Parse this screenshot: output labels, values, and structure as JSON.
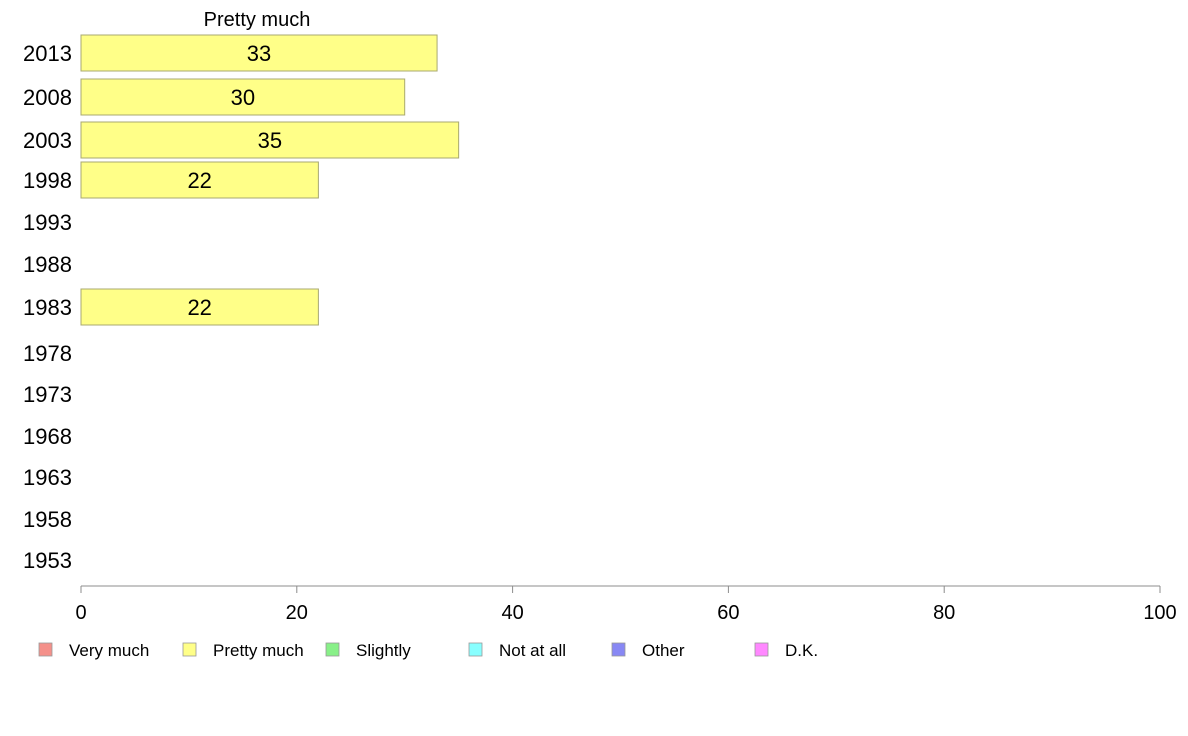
{
  "chart_data": {
    "type": "bar",
    "orientation": "horizontal",
    "title": "Pretty much",
    "categories": [
      "2013",
      "2008",
      "2003",
      "1998",
      "1993",
      "1988",
      "1983",
      "1978",
      "1973",
      "1968",
      "1963",
      "1958",
      "1953"
    ],
    "series": [
      {
        "name": "Pretty much",
        "values": [
          33,
          30,
          35,
          22,
          null,
          null,
          22,
          null,
          null,
          null,
          null,
          null,
          null
        ]
      }
    ],
    "data_labels": [
      "33",
      "30",
      "35",
      "22",
      "",
      "",
      "22",
      "",
      "",
      "",
      "",
      "",
      ""
    ],
    "xlim": [
      0,
      100
    ],
    "xticks": [
      0,
      20,
      40,
      60,
      80,
      100
    ],
    "grid": false,
    "legend_position": "bottom",
    "bar_color": "#ffff88",
    "bar_stroke": "#a8a870"
  },
  "legend": {
    "items": [
      {
        "label": "Very much",
        "color": "#f4908a"
      },
      {
        "label": "Pretty much",
        "color": "#ffff88"
      },
      {
        "label": "Slightly",
        "color": "#88f088"
      },
      {
        "label": "Not at all",
        "color": "#88ffff"
      },
      {
        "label": "Other",
        "color": "#8888f4"
      },
      {
        "label": "D.K.",
        "color": "#ff88ff"
      }
    ]
  }
}
